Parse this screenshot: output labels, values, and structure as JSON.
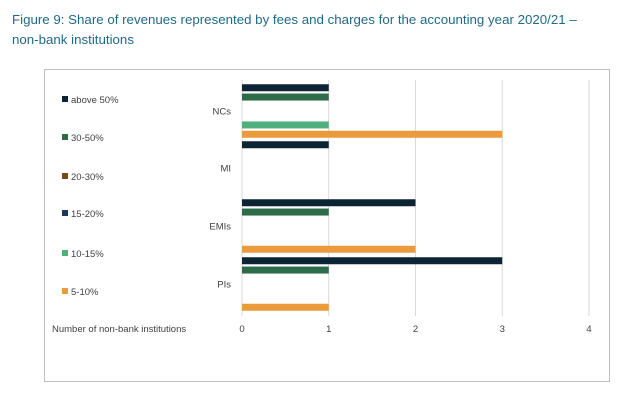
{
  "caption": {
    "line1": "Figure 9: Share of revenues represented by fees and charges for the accounting year 2020/21 –",
    "line2": "non-bank institutions"
  },
  "chart_data": {
    "type": "bar",
    "orientation": "horizontal",
    "categories": [
      "NCs",
      "MI",
      "EMIs",
      "PIs"
    ],
    "series": [
      {
        "name": "above 50%",
        "color": "#0d2435",
        "values": [
          1,
          1,
          2,
          3
        ]
      },
      {
        "name": "30-50%",
        "color": "#2e6b48",
        "values": [
          1,
          0,
          1,
          1
        ]
      },
      {
        "name": "20-30%",
        "color": "#7a4a12",
        "values": [
          0,
          0,
          0,
          0
        ]
      },
      {
        "name": "15-20%",
        "color": "#1c3a5a",
        "values": [
          0,
          0,
          0,
          0
        ]
      },
      {
        "name": "10-15%",
        "color": "#4fb07c",
        "values": [
          1,
          0,
          0,
          0
        ]
      },
      {
        "name": "5-10%",
        "color": "#eb9a3c",
        "values": [
          3,
          0,
          2,
          1
        ]
      }
    ],
    "xlabel": "Number of non-bank institutions",
    "xlim": [
      0,
      4
    ],
    "xticks": [
      "0",
      "1",
      "2",
      "3",
      "4"
    ],
    "grid": "vertical",
    "legend": "left"
  }
}
